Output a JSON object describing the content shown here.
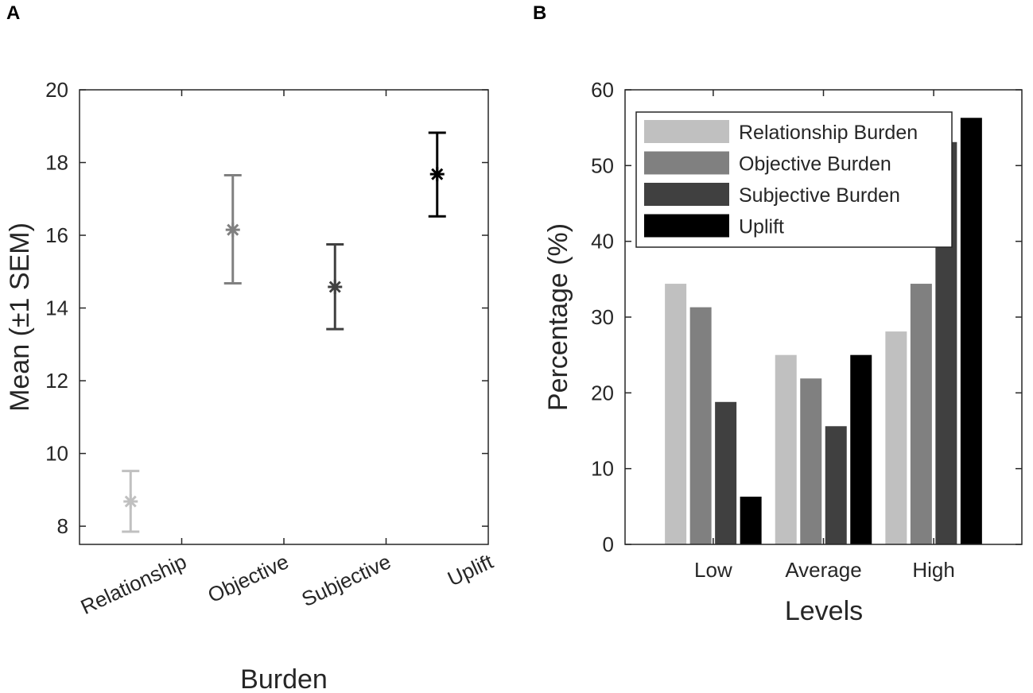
{
  "panels": {
    "a_letter": "A",
    "b_letter": "B"
  },
  "chart_data": [
    {
      "id": "A",
      "type": "scatter",
      "title": "",
      "xlabel": "Burden",
      "ylabel": "Mean (±1 SEM)",
      "ylim": [
        7.5,
        20
      ],
      "yticks": [
        8,
        10,
        12,
        14,
        16,
        18,
        20
      ],
      "xticklabels": [
        "Relationship",
        "Objective",
        "Subjective",
        "Uplift"
      ],
      "points": [
        {
          "category": "Relationship",
          "mean": 8.68,
          "lower": 7.85,
          "upper": 9.52,
          "color": "#c0c0c0"
        },
        {
          "category": "Objective",
          "mean": 16.15,
          "lower": 14.68,
          "upper": 17.65,
          "color": "#808080"
        },
        {
          "category": "Subjective",
          "mean": 14.58,
          "lower": 13.42,
          "upper": 15.75,
          "color": "#404040"
        },
        {
          "category": "Uplift",
          "mean": 17.68,
          "lower": 16.52,
          "upper": 18.82,
          "color": "#000000"
        }
      ]
    },
    {
      "id": "B",
      "type": "bar",
      "title": "",
      "xlabel": "Levels",
      "ylabel": "Percentage (%)",
      "ylim": [
        0,
        60
      ],
      "yticks": [
        0,
        10,
        20,
        30,
        40,
        50,
        60
      ],
      "categories": [
        "Low",
        "Average",
        "High"
      ],
      "legend_position": "top-left",
      "series": [
        {
          "name": "Relationship Burden",
          "color": "#c0c0c0",
          "values": [
            34.4,
            25.0,
            28.1
          ]
        },
        {
          "name": "Objective Burden",
          "color": "#808080",
          "values": [
            31.3,
            21.9,
            34.4
          ]
        },
        {
          "name": "Subjective Burden",
          "color": "#404040",
          "values": [
            18.8,
            15.6,
            53.1
          ]
        },
        {
          "name": "Uplift",
          "color": "#000000",
          "values": [
            6.3,
            25.0,
            56.3
          ]
        }
      ]
    }
  ]
}
